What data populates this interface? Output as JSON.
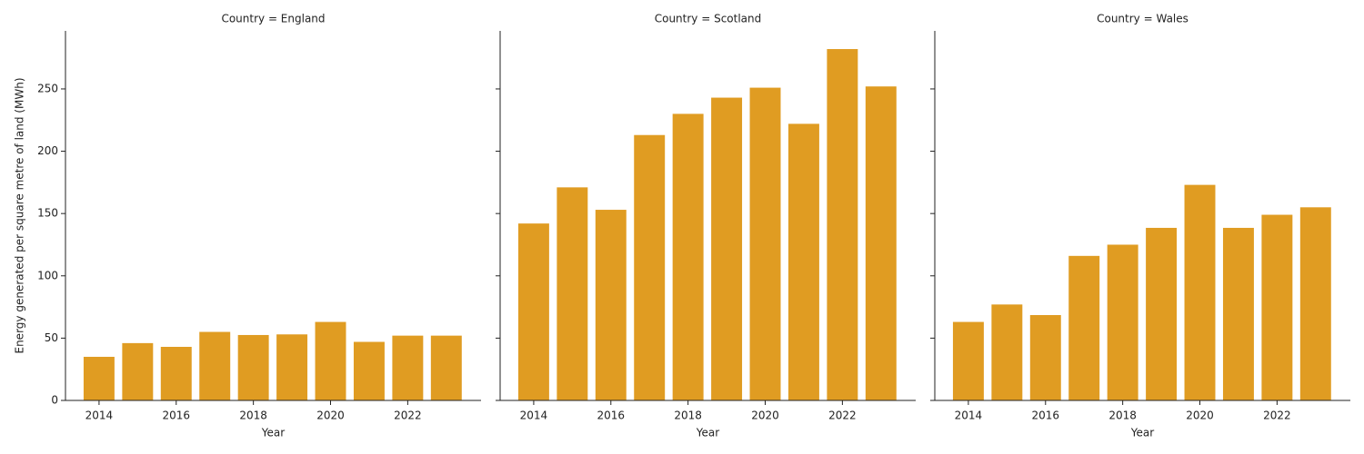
{
  "chart_data": [
    {
      "type": "bar",
      "title": "Country = England",
      "xlabel": "Year",
      "ylabel": "Energy generated per square metre of land (MWh)",
      "x": [
        2014,
        2015,
        2016,
        2017,
        2018,
        2019,
        2020,
        2021,
        2022,
        2023
      ],
      "values": [
        35,
        46,
        43,
        55,
        52.5,
        53,
        63,
        47,
        52,
        52
      ],
      "color": "#e09c22",
      "xlim": [
        2013.13,
        2023.9
      ],
      "xticks": [
        2014,
        2016,
        2018,
        2020,
        2022
      ],
      "ylim": [
        0,
        296.6
      ],
      "yticks": [
        0,
        50,
        100,
        150,
        200,
        250
      ]
    },
    {
      "type": "bar",
      "title": "Country = Scotland",
      "xlabel": "Year",
      "x": [
        2014,
        2015,
        2016,
        2017,
        2018,
        2019,
        2020,
        2021,
        2022,
        2023
      ],
      "values": [
        142,
        171,
        153,
        213,
        230,
        243,
        251,
        222,
        282,
        252
      ],
      "color": "#e09c22",
      "xlim": [
        2013.13,
        2023.9
      ],
      "xticks": [
        2014,
        2016,
        2018,
        2020,
        2022
      ],
      "ylim": [
        0,
        296.6
      ],
      "yticks": [
        0,
        50,
        100,
        150,
        200,
        250
      ]
    },
    {
      "type": "bar",
      "title": "Country = Wales",
      "xlabel": "Year",
      "x": [
        2014,
        2015,
        2016,
        2017,
        2018,
        2019,
        2020,
        2021,
        2022,
        2023
      ],
      "values": [
        63,
        77,
        68.5,
        116,
        125,
        138.5,
        173,
        138.5,
        149,
        155
      ],
      "color": "#e09c22",
      "xlim": [
        2013.13,
        2023.9
      ],
      "xticks": [
        2014,
        2016,
        2018,
        2020,
        2022
      ],
      "ylim": [
        0,
        296.6
      ],
      "yticks": [
        0,
        50,
        100,
        150,
        200,
        250
      ]
    }
  ]
}
